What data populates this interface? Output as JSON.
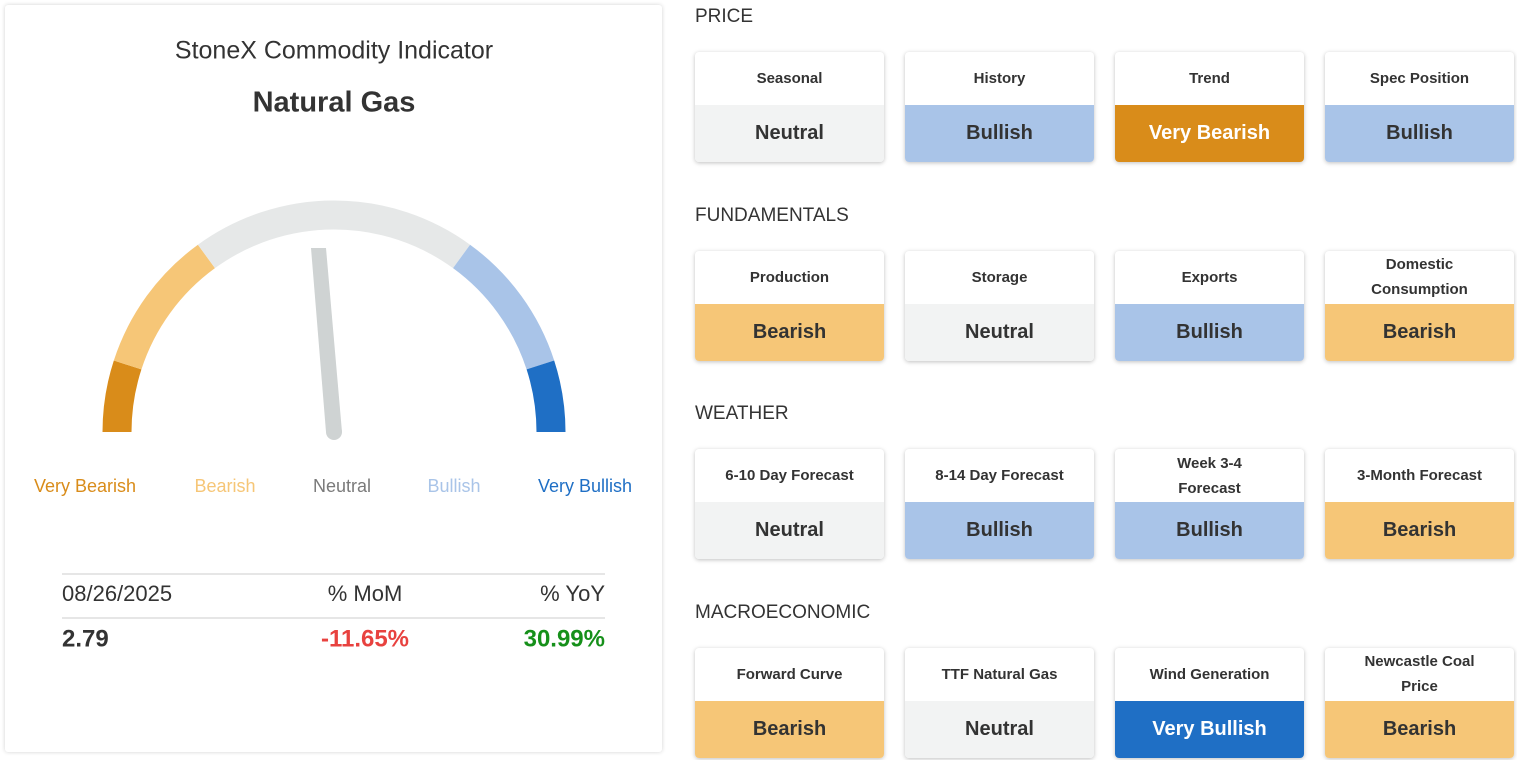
{
  "panel": {
    "title": "StoneX Commodity Indicator",
    "subtitle": "Natural Gas",
    "gauge_labels": [
      {
        "text": "Very Bearish",
        "color": "#d98c1a"
      },
      {
        "text": "Bearish",
        "color": "#f6c677"
      },
      {
        "text": "Neutral",
        "color": "#e6e8e8",
        "text_color": "#7a7a7a"
      },
      {
        "text": "Bullish",
        "color": "#a9c4e8"
      },
      {
        "text": "Very Bullish",
        "color": "#1f6fc5"
      }
    ],
    "stats": {
      "headers": [
        "08/26/2025",
        "% MoM",
        "% YoY"
      ],
      "values": [
        {
          "text": "2.79",
          "color": "#333333"
        },
        {
          "text": "-11.65%",
          "color": "#e8423f"
        },
        {
          "text": "30.99%",
          "color": "#16901a"
        }
      ]
    }
  },
  "sections": [
    {
      "title": "PRICE",
      "cards": [
        {
          "label": "Seasonal",
          "rating": "Neutral",
          "color": "#f2f3f3"
        },
        {
          "label": "History",
          "rating": "Bullish",
          "color": "#a9c4e8"
        },
        {
          "label": "Trend",
          "rating": "Very Bearish",
          "color": "#d98c1a"
        },
        {
          "label": "Spec Position",
          "rating": "Bullish",
          "color": "#a9c4e8"
        }
      ]
    },
    {
      "title": "FUNDAMENTALS",
      "cards": [
        {
          "label": "Production",
          "rating": "Bearish",
          "color": "#f6c677"
        },
        {
          "label": "Storage",
          "rating": "Neutral",
          "color": "#f2f3f3"
        },
        {
          "label": "Exports",
          "rating": "Bullish",
          "color": "#a9c4e8"
        },
        {
          "label": "Domestic Consumption",
          "rating": "Bearish",
          "color": "#f6c677"
        }
      ]
    },
    {
      "title": "WEATHER",
      "cards": [
        {
          "label": "6-10 Day Forecast",
          "rating": "Neutral",
          "color": "#f2f3f3"
        },
        {
          "label": "8-14 Day Forecast",
          "rating": "Bullish",
          "color": "#a9c4e8"
        },
        {
          "label": "Week 3-4 Forecast",
          "rating": "Bullish",
          "color": "#a9c4e8"
        },
        {
          "label": "3-Month Forecast",
          "rating": "Bearish",
          "color": "#f6c677"
        }
      ]
    },
    {
      "title": "MACROECONOMIC",
      "cards": [
        {
          "label": "Forward Curve",
          "rating": "Bearish",
          "color": "#f6c677"
        },
        {
          "label": "TTF Natural Gas",
          "rating": "Neutral",
          "color": "#f2f3f3"
        },
        {
          "label": "Wind Generation",
          "rating": "Very Bullish",
          "color": "#1f6fc5"
        },
        {
          "label": "Newcastle Coal Price",
          "rating": "Bearish",
          "color": "#f6c677"
        }
      ]
    }
  ]
}
